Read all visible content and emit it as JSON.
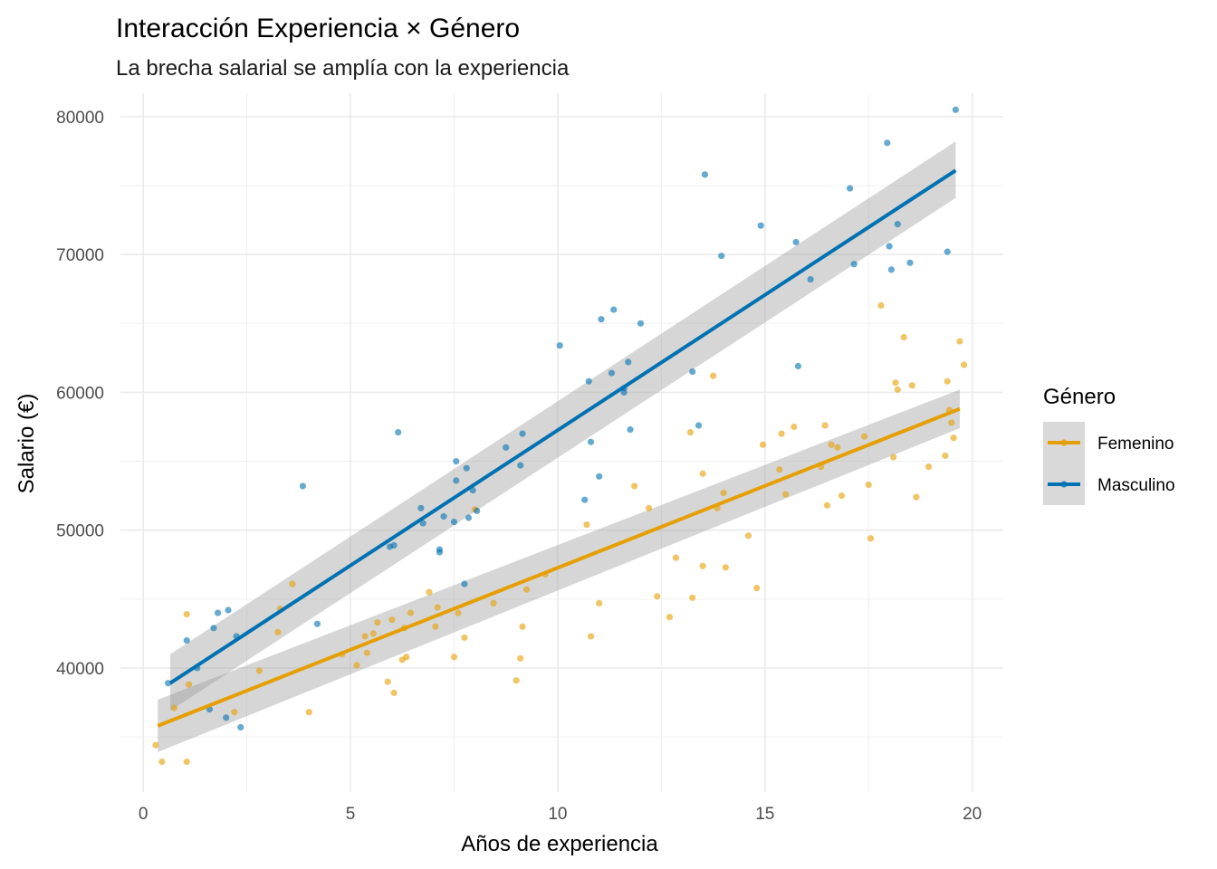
{
  "chart_data": {
    "type": "scatter",
    "title": "Interacción Experiencia × Género",
    "subtitle": "La brecha salarial se amplía con la experiencia",
    "xlabel": "Años de experiencia",
    "ylabel": "Salario (€)",
    "xlim": [
      -0.55,
      20.75
    ],
    "ylim": [
      31000,
      81700
    ],
    "x_ticks": [
      0,
      5,
      10,
      15,
      20
    ],
    "x_tick_labels": [
      "0",
      "5",
      "10",
      "15",
      "20"
    ],
    "y_ticks": [
      40000,
      50000,
      60000,
      70000,
      80000
    ],
    "y_tick_labels": [
      "40000",
      "50000",
      "60000",
      "70000",
      "80000"
    ],
    "grid": true,
    "legend": {
      "title": "Género",
      "placement": "right",
      "entries": [
        "Femenino",
        "Masculino"
      ]
    },
    "series": [
      {
        "name": "Femenino",
        "color": "#E69F00",
        "fit": {
          "start": [
            0.35,
            35800
          ],
          "end": [
            19.7,
            58800
          ],
          "ci_start": [
            33900,
            37700
          ],
          "ci_end": [
            57400,
            60200
          ]
        },
        "points": [
          [
            0.3,
            34400
          ],
          [
            0.45,
            33200
          ],
          [
            0.75,
            37100
          ],
          [
            1.05,
            33200
          ],
          [
            1.1,
            38800
          ],
          [
            1.05,
            43900
          ],
          [
            2.2,
            36800
          ],
          [
            2.8,
            39800
          ],
          [
            3.25,
            42600
          ],
          [
            3.3,
            44300
          ],
          [
            3.6,
            46100
          ],
          [
            4.0,
            36800
          ],
          [
            4.8,
            41000
          ],
          [
            5.15,
            40200
          ],
          [
            5.35,
            42300
          ],
          [
            5.4,
            41100
          ],
          [
            5.55,
            42500
          ],
          [
            5.65,
            43300
          ],
          [
            5.9,
            39000
          ],
          [
            6.0,
            43500
          ],
          [
            6.05,
            38200
          ],
          [
            6.25,
            40600
          ],
          [
            6.3,
            42900
          ],
          [
            6.35,
            40800
          ],
          [
            6.45,
            44000
          ],
          [
            6.9,
            45500
          ],
          [
            7.05,
            43000
          ],
          [
            7.1,
            44400
          ],
          [
            7.5,
            40800
          ],
          [
            7.6,
            44000
          ],
          [
            7.75,
            42200
          ],
          [
            8.0,
            51500
          ],
          [
            8.45,
            44700
          ],
          [
            9.0,
            39100
          ],
          [
            9.1,
            40700
          ],
          [
            9.15,
            43000
          ],
          [
            9.25,
            45700
          ],
          [
            9.7,
            46800
          ],
          [
            10.7,
            50400
          ],
          [
            10.8,
            42300
          ],
          [
            11.0,
            44700
          ],
          [
            11.85,
            53200
          ],
          [
            12.2,
            51600
          ],
          [
            12.4,
            45200
          ],
          [
            12.7,
            43700
          ],
          [
            12.85,
            48000
          ],
          [
            13.2,
            57100
          ],
          [
            13.25,
            45100
          ],
          [
            13.5,
            54100
          ],
          [
            13.5,
            47400
          ],
          [
            13.75,
            61200
          ],
          [
            13.85,
            51600
          ],
          [
            14.0,
            52700
          ],
          [
            14.05,
            47300
          ],
          [
            14.6,
            49600
          ],
          [
            14.8,
            45800
          ],
          [
            14.95,
            56200
          ],
          [
            15.35,
            54400
          ],
          [
            15.4,
            57000
          ],
          [
            15.5,
            52600
          ],
          [
            15.7,
            57500
          ],
          [
            16.35,
            54600
          ],
          [
            16.45,
            57600
          ],
          [
            16.5,
            51800
          ],
          [
            16.6,
            56200
          ],
          [
            16.75,
            56000
          ],
          [
            16.85,
            52500
          ],
          [
            17.4,
            56800
          ],
          [
            17.5,
            53300
          ],
          [
            17.55,
            49400
          ],
          [
            17.8,
            66300
          ],
          [
            18.1,
            55300
          ],
          [
            18.15,
            60700
          ],
          [
            18.2,
            60200
          ],
          [
            18.35,
            64000
          ],
          [
            18.55,
            60500
          ],
          [
            18.65,
            52400
          ],
          [
            18.95,
            54600
          ],
          [
            19.35,
            55400
          ],
          [
            19.4,
            60800
          ],
          [
            19.45,
            58700
          ],
          [
            19.5,
            57800
          ],
          [
            19.55,
            56700
          ],
          [
            19.7,
            63700
          ],
          [
            19.8,
            62000
          ]
        ]
      },
      {
        "name": "Masculino",
        "color": "#0072B2",
        "fit": {
          "start": [
            0.65,
            38900
          ],
          "end": [
            19.6,
            76100
          ],
          "ci_start": [
            36900,
            41000
          ],
          "ci_end": [
            74100,
            78200
          ]
        },
        "points": [
          [
            0.6,
            38900
          ],
          [
            1.05,
            42000
          ],
          [
            1.3,
            40000
          ],
          [
            1.6,
            37000
          ],
          [
            1.7,
            42900
          ],
          [
            1.8,
            44000
          ],
          [
            2.05,
            44200
          ],
          [
            2.0,
            36400
          ],
          [
            2.25,
            42300
          ],
          [
            2.35,
            35700
          ],
          [
            3.85,
            53200
          ],
          [
            4.2,
            43200
          ],
          [
            5.95,
            48800
          ],
          [
            6.05,
            48900
          ],
          [
            6.15,
            57100
          ],
          [
            6.7,
            51600
          ],
          [
            6.75,
            50500
          ],
          [
            7.15,
            48600
          ],
          [
            7.15,
            48400
          ],
          [
            7.25,
            51000
          ],
          [
            7.5,
            50600
          ],
          [
            7.55,
            55000
          ],
          [
            7.55,
            53600
          ],
          [
            7.75,
            46100
          ],
          [
            7.8,
            54500
          ],
          [
            7.85,
            50900
          ],
          [
            7.95,
            52900
          ],
          [
            8.05,
            51400
          ],
          [
            8.75,
            56000
          ],
          [
            9.1,
            54700
          ],
          [
            9.15,
            57000
          ],
          [
            10.05,
            63400
          ],
          [
            10.65,
            52200
          ],
          [
            10.75,
            60800
          ],
          [
            10.8,
            56400
          ],
          [
            11.0,
            53900
          ],
          [
            11.05,
            65300
          ],
          [
            11.35,
            66000
          ],
          [
            11.3,
            61400
          ],
          [
            11.6,
            60000
          ],
          [
            11.6,
            60300
          ],
          [
            11.7,
            62200
          ],
          [
            11.75,
            57300
          ],
          [
            12.0,
            65000
          ],
          [
            13.25,
            61500
          ],
          [
            13.4,
            57600
          ],
          [
            13.55,
            75800
          ],
          [
            13.95,
            69900
          ],
          [
            14.9,
            72100
          ],
          [
            15.75,
            70900
          ],
          [
            15.8,
            61900
          ],
          [
            16.1,
            68200
          ],
          [
            17.05,
            74800
          ],
          [
            17.15,
            69300
          ],
          [
            17.95,
            78100
          ],
          [
            18.0,
            70600
          ],
          [
            18.05,
            68900
          ],
          [
            18.2,
            72200
          ],
          [
            18.5,
            69400
          ],
          [
            19.4,
            70200
          ],
          [
            19.6,
            80500
          ]
        ]
      }
    ]
  }
}
